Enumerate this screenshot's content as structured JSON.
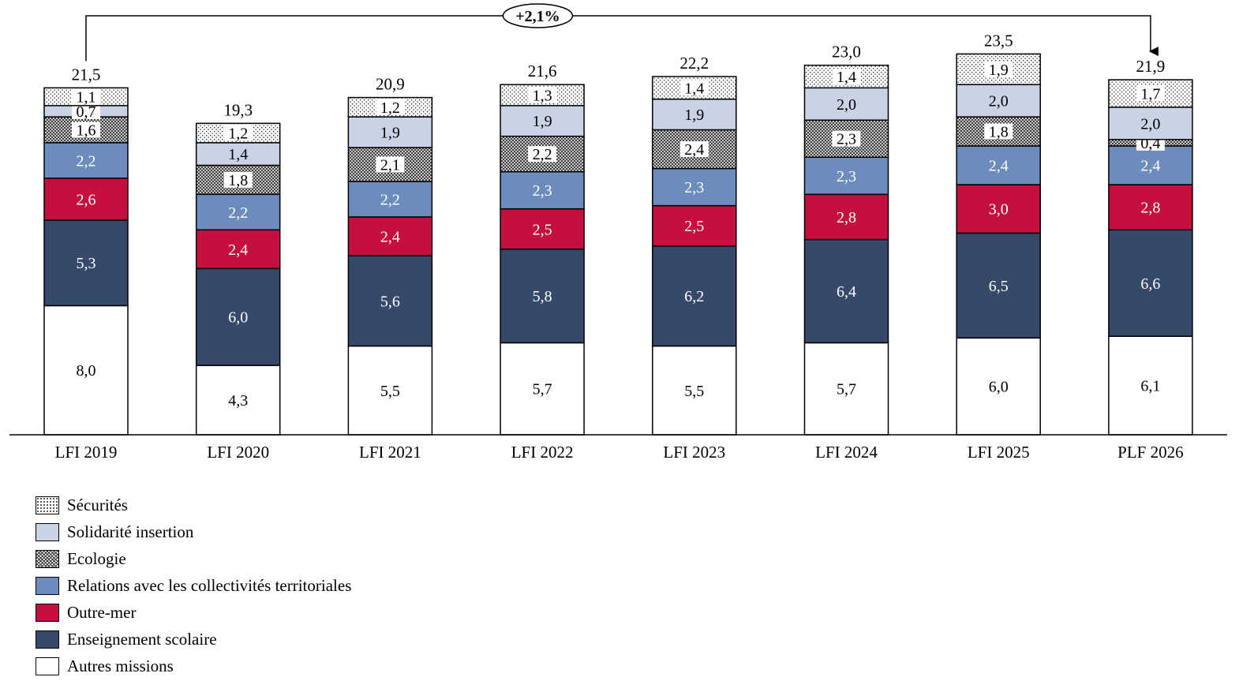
{
  "chart_data": {
    "type": "bar",
    "stacked": true,
    "categories": [
      "LFI 2019",
      "LFI 2020",
      "LFI 2021",
      "LFI 2022",
      "LFI 2023",
      "LFI 2024",
      "LFI 2025",
      "PLF 2026"
    ],
    "totals": [
      "21,5",
      "19,3",
      "20,9",
      "21,6",
      "22,2",
      "23,0",
      "23,5",
      "21,9"
    ],
    "series": [
      {
        "name": "Autres missions",
        "fill": "plain",
        "color": "#ffffff",
        "text_color": "#000000",
        "values": [
          8.0,
          4.3,
          5.5,
          5.7,
          5.5,
          5.7,
          6.0,
          6.1
        ],
        "labels": [
          "8,0",
          "4,3",
          "5,5",
          "5,7",
          "5,5",
          "5,7",
          "6,0",
          "6,1"
        ]
      },
      {
        "name": "Enseignement scolaire",
        "fill": "plain",
        "color": "#36496b",
        "text_color": "#ffffff",
        "values": [
          5.3,
          6.0,
          5.6,
          5.8,
          6.2,
          6.4,
          6.5,
          6.6
        ],
        "labels": [
          "5,3",
          "6,0",
          "5,6",
          "5,8",
          "6,2",
          "6,4",
          "6,5",
          "6,6"
        ]
      },
      {
        "name": "Outre-mer",
        "fill": "plain",
        "color": "#c5103f",
        "text_color": "#ffffff",
        "values": [
          2.6,
          2.4,
          2.4,
          2.5,
          2.5,
          2.8,
          3.0,
          2.8
        ],
        "labels": [
          "2,6",
          "2,4",
          "2,4",
          "2,5",
          "2,5",
          "2,8",
          "3,0",
          "2,8"
        ]
      },
      {
        "name": "Relations avec les collectivités territoriales",
        "fill": "plain",
        "color": "#6b8cbc",
        "text_color": "#ffffff",
        "values": [
          2.2,
          2.2,
          2.2,
          2.3,
          2.3,
          2.3,
          2.4,
          2.4
        ],
        "labels": [
          "2,2",
          "2,2",
          "2,2",
          "2,3",
          "2,3",
          "2,3",
          "2,4",
          "2,4"
        ]
      },
      {
        "name": "Ecologie",
        "fill": "crosshatch",
        "color": "#ffffff",
        "text_color": "#000000",
        "values": [
          1.6,
          1.8,
          2.1,
          2.2,
          2.4,
          2.3,
          1.8,
          0.4
        ],
        "labels": [
          "1,6",
          "1,8",
          "2,1",
          "2,2",
          "2,4",
          "2,3",
          "1,8",
          "0,4"
        ]
      },
      {
        "name": "Solidarité insertion",
        "fill": "plain",
        "color": "#c9d3e5",
        "text_color": "#000000",
        "values": [
          0.7,
          1.4,
          1.9,
          1.9,
          1.9,
          2.0,
          2.0,
          2.0
        ],
        "labels": [
          "0,7",
          "1,4",
          "1,9",
          "1,9",
          "1,9",
          "2,0",
          "2,0",
          "2,0"
        ]
      },
      {
        "name": "Sécurités",
        "fill": "dots",
        "color": "#ffffff",
        "text_color": "#000000",
        "values": [
          1.1,
          1.2,
          1.2,
          1.3,
          1.4,
          1.4,
          1.9,
          1.7
        ],
        "labels": [
          "1,1",
          "1,2",
          "1,2",
          "1,3",
          "1,4",
          "1,4",
          "1,9",
          "1,7"
        ]
      }
    ],
    "growth_annotation": "+2,1%",
    "legend_order": [
      "Sécurités",
      "Solidarité insertion",
      "Ecologie",
      "Relations avec les collectivités territoriales",
      "Outre-mer",
      "Enseignement scolaire",
      "Autres missions"
    ],
    "legend_position": "bottom-left",
    "grid": false
  }
}
